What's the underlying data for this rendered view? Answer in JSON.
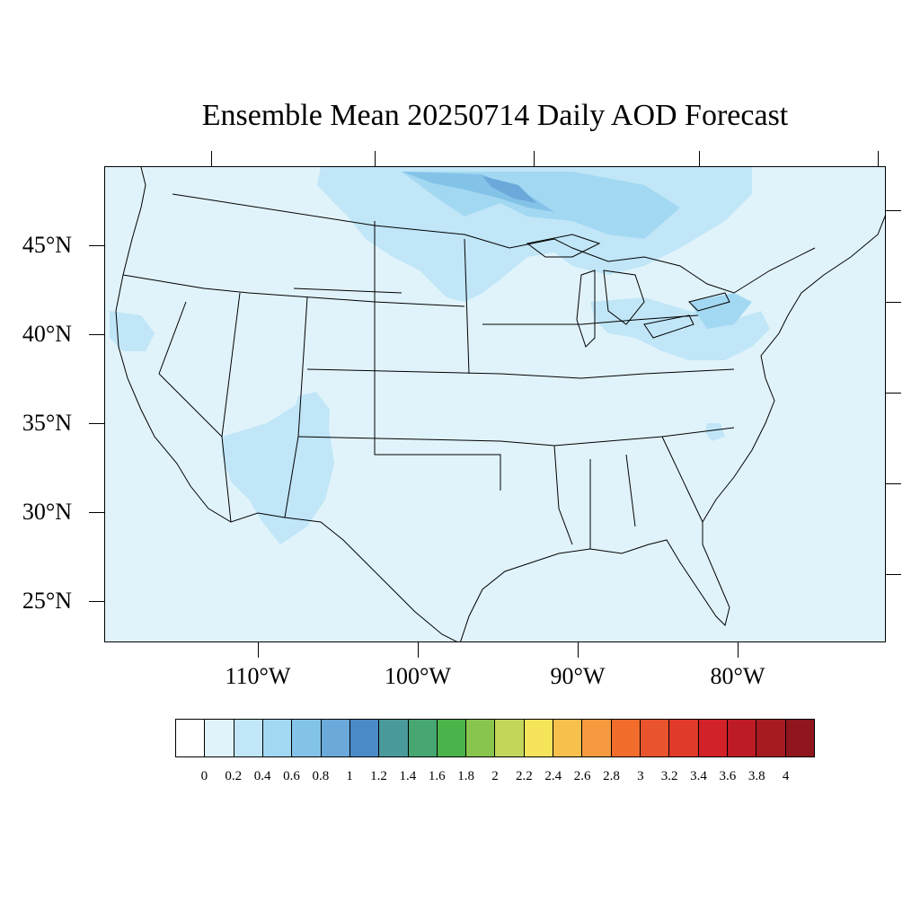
{
  "title": "Ensemble Mean 20250714 Daily AOD Forecast",
  "map": {
    "region": "Contiguous United States",
    "variable": "AOD",
    "lat_labels": [
      "45°N",
      "40°N",
      "35°N",
      "30°N",
      "25°N"
    ],
    "lon_labels": [
      "110°W",
      "100°W",
      "90°W",
      "80°W"
    ],
    "background_color": "#e0f3fb",
    "plume_colors": [
      "#c0e6f7",
      "#a3d8f2",
      "#84c3e8",
      "#6aa9da"
    ]
  },
  "colorbar": {
    "colors": [
      "#ffffff",
      "#e0f3fb",
      "#c0e6f7",
      "#a3d8f2",
      "#84c3e8",
      "#6aa9da",
      "#4a8bc7",
      "#4a9a9c",
      "#48a672",
      "#4ab44a",
      "#88c44e",
      "#c3d65a",
      "#f6e45a",
      "#f7bf4c",
      "#f59a3e",
      "#f26c2c",
      "#e9532d",
      "#e03a2a",
      "#d12129",
      "#bd1b26",
      "#a61b22",
      "#8e161c"
    ],
    "labels": [
      "0",
      "0.2",
      "0.4",
      "0.6",
      "0.8",
      "1",
      "1.2",
      "1.4",
      "1.6",
      "1.8",
      "2",
      "2.2",
      "2.4",
      "2.6",
      "2.8",
      "3",
      "3.2",
      "3.4",
      "3.6",
      "3.8",
      "4"
    ]
  }
}
